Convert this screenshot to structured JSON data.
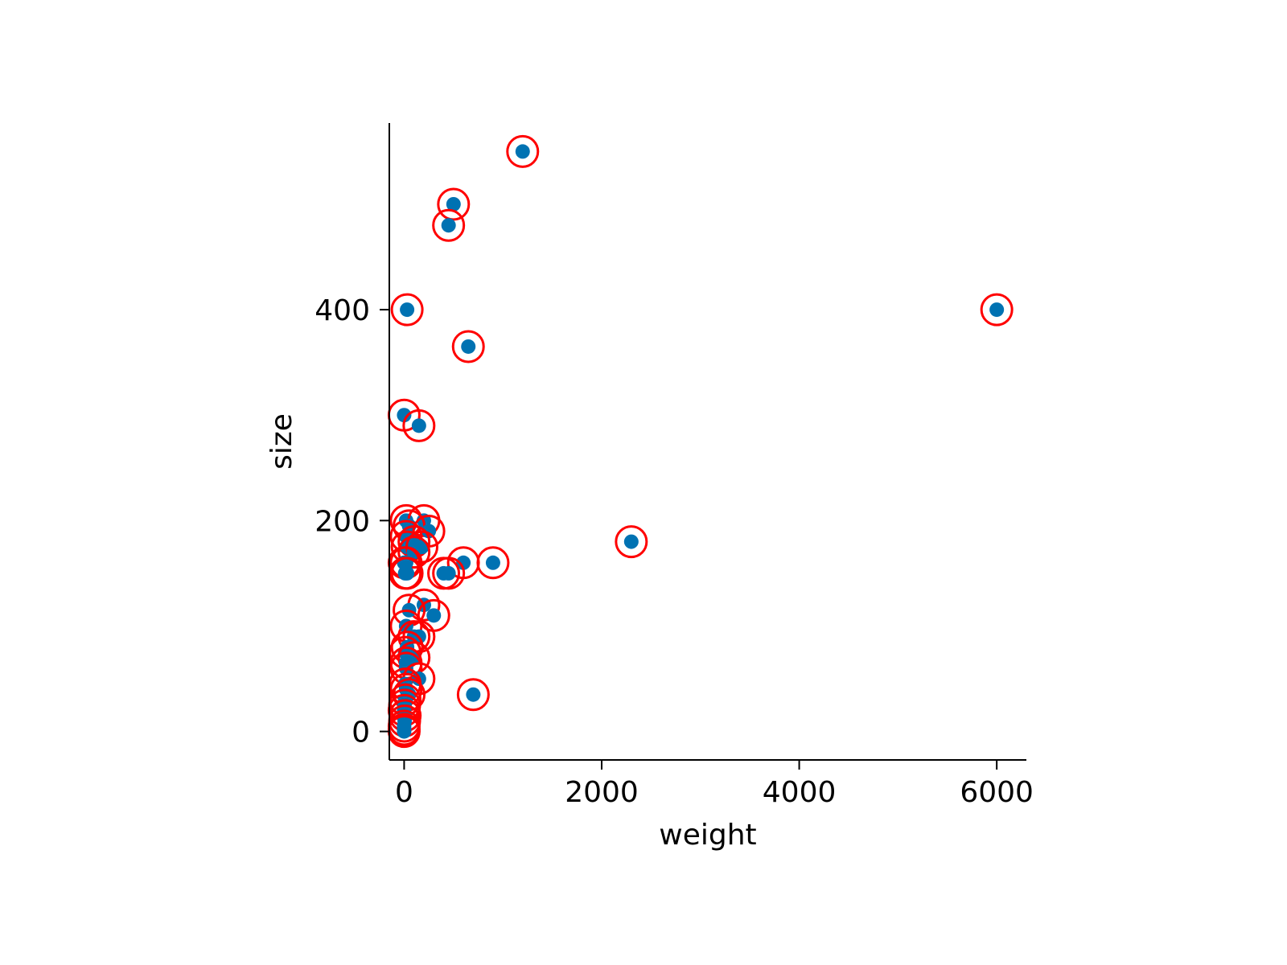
{
  "chart_data": {
    "type": "scatter",
    "title": "",
    "xlabel": "weight",
    "ylabel": "size",
    "xlim": [
      -150,
      6300
    ],
    "ylim": [
      -27,
      577
    ],
    "xticks": [
      0,
      2000,
      4000,
      6000
    ],
    "xtick_labels": [
      "0",
      "2000",
      "4000",
      "6000"
    ],
    "yticks": [
      0,
      200,
      400
    ],
    "ytick_labels": [
      "0",
      "200",
      "400"
    ],
    "grid": false,
    "legend": "none",
    "marker_color": "#0072b2",
    "highlight_ring_color": "#ff0000",
    "series": [
      {
        "x": [
          1200,
          500,
          450,
          30,
          6000,
          650,
          0,
          150,
          20,
          200,
          50,
          250,
          20,
          100,
          30,
          180,
          100,
          0,
          20,
          600,
          900,
          400,
          450,
          30,
          10,
          2300,
          200,
          50,
          300,
          20,
          100,
          150,
          30,
          10,
          100,
          20,
          20,
          150,
          10,
          700,
          20,
          50,
          10,
          5,
          0,
          10,
          5,
          0,
          0,
          0
        ],
        "y": [
          550,
          500,
          480,
          400,
          400,
          365,
          300,
          290,
          200,
          200,
          195,
          190,
          185,
          180,
          175,
          175,
          170,
          160,
          160,
          160,
          160,
          150,
          150,
          150,
          150,
          180,
          120,
          115,
          110,
          100,
          90,
          90,
          80,
          75,
          70,
          65,
          60,
          50,
          45,
          35,
          40,
          35,
          30,
          25,
          20,
          15,
          10,
          5,
          2,
          0
        ]
      }
    ]
  }
}
